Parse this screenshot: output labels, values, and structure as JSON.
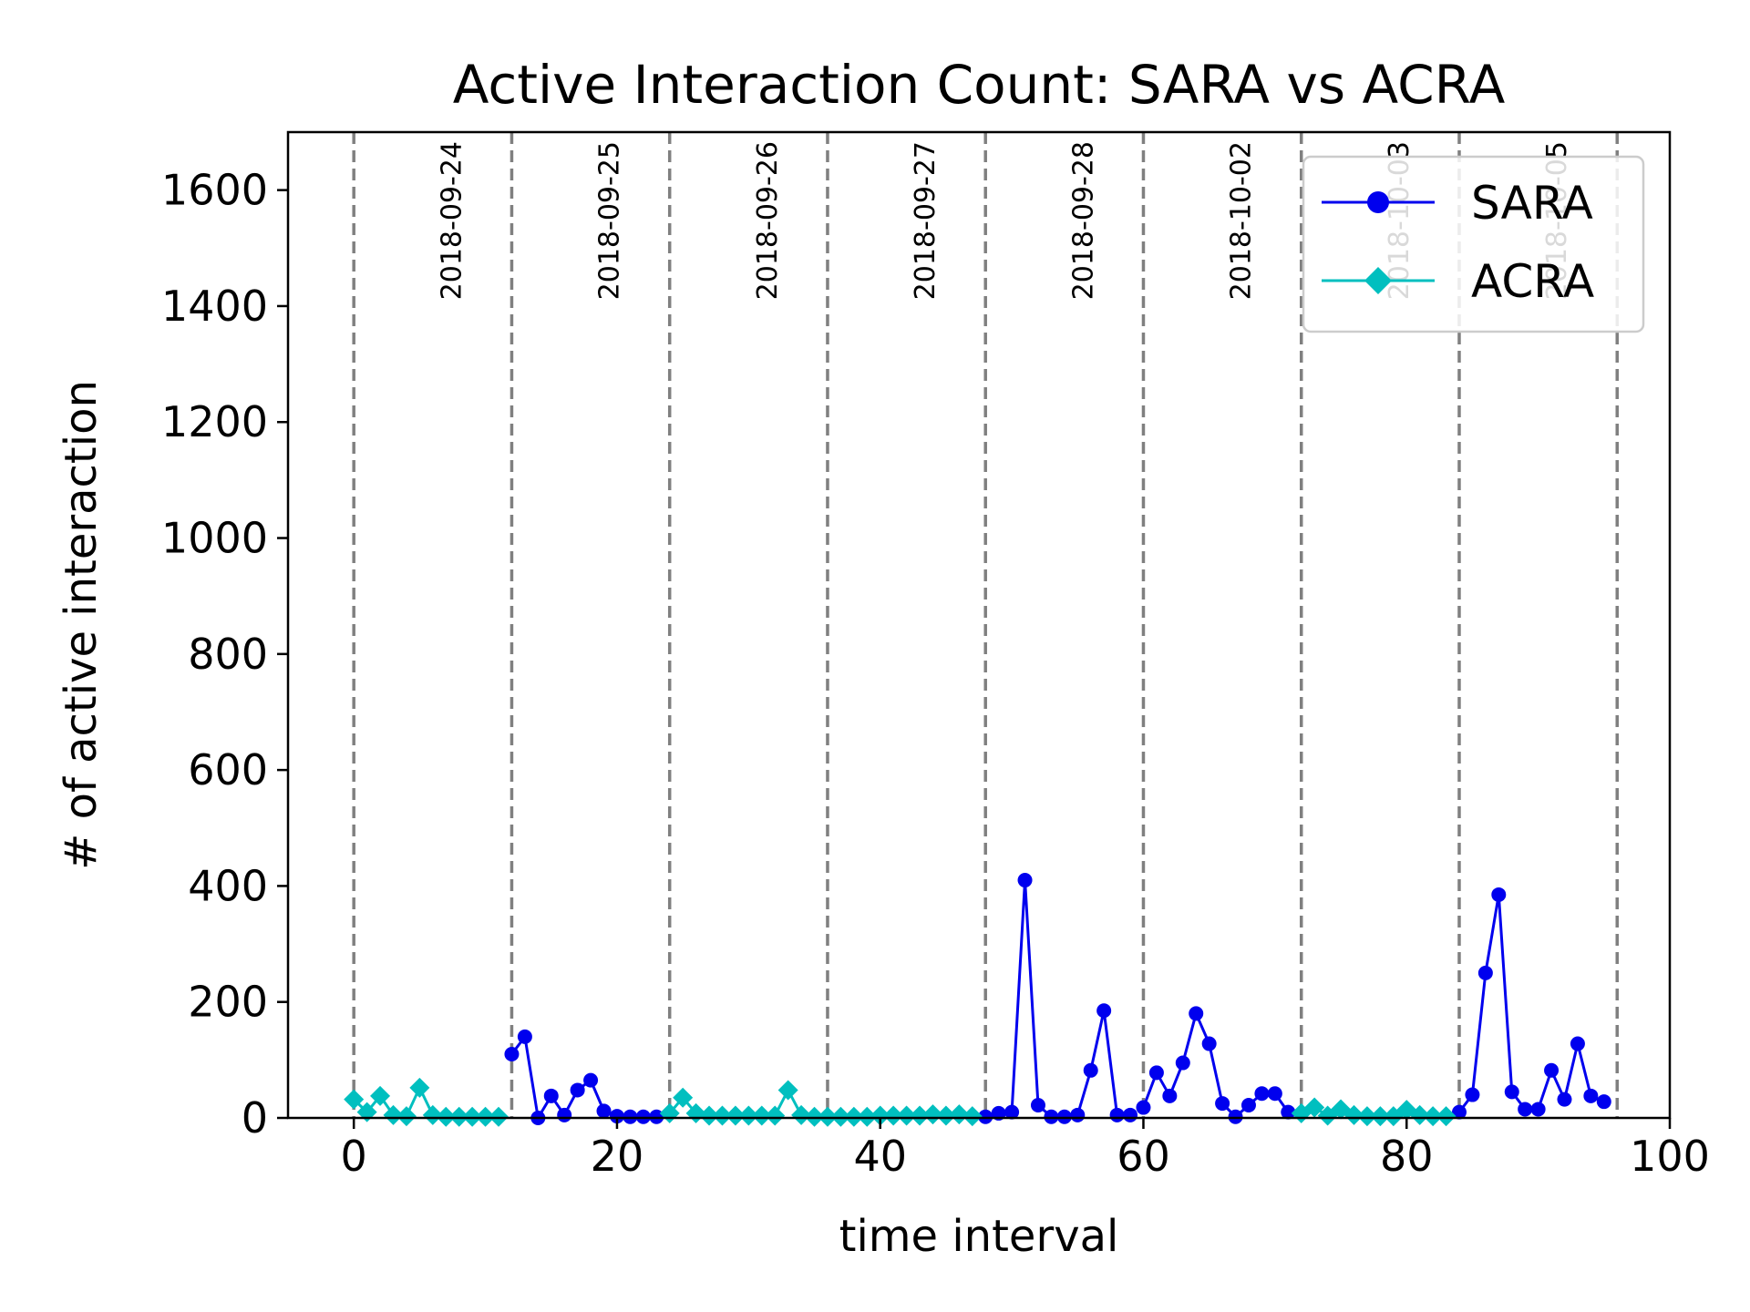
{
  "chart_data": {
    "type": "line",
    "title": "Active Interaction Count: SARA vs ACRA",
    "xlabel": "time interval",
    "ylabel": "# of active interaction",
    "xlim": [
      -5,
      100
    ],
    "ylim": [
      0,
      1700
    ],
    "xticks": [
      0,
      20,
      40,
      60,
      80,
      100
    ],
    "yticks": [
      0,
      200,
      400,
      600,
      800,
      1000,
      1200,
      1400,
      1600
    ],
    "grid": false,
    "legend_position": "top-right",
    "vertical_lines": [
      {
        "x": 0,
        "label": ""
      },
      {
        "x": 12,
        "label": "2018-09-24"
      },
      {
        "x": 24,
        "label": "2018-09-25"
      },
      {
        "x": 36,
        "label": "2018-09-26"
      },
      {
        "x": 48,
        "label": "2018-09-27"
      },
      {
        "x": 60,
        "label": "2018-09-28"
      },
      {
        "x": 72,
        "label": "2018-10-02"
      },
      {
        "x": 84,
        "label": "2018-10-03"
      },
      {
        "x": 96,
        "label": "2018-10-05"
      }
    ],
    "series": [
      {
        "name": "SARA",
        "color": "#0000ee",
        "marker": "circle",
        "segments": [
          {
            "x": [
              12,
              13,
              14,
              15,
              16,
              17,
              18,
              19,
              20,
              21,
              22,
              23
            ],
            "y": [
              110,
              140,
              0,
              38,
              5,
              48,
              65,
              12,
              3,
              2,
              2,
              2
            ]
          },
          {
            "x": [
              48,
              49,
              50,
              51,
              52,
              53,
              54,
              55,
              56,
              57,
              58,
              59
            ],
            "y": [
              2,
              8,
              10,
              410,
              22,
              2,
              2,
              5,
              82,
              185,
              5,
              5
            ]
          },
          {
            "x": [
              60,
              61,
              62,
              63,
              64,
              65,
              66,
              67,
              68,
              69,
              70,
              71
            ],
            "y": [
              18,
              78,
              38,
              95,
              180,
              128,
              25,
              2,
              22,
              42,
              42,
              10
            ]
          },
          {
            "x": [
              84,
              85,
              86,
              87,
              88,
              89,
              90,
              91,
              92,
              93,
              94,
              95
            ],
            "y": [
              10,
              40,
              250,
              385,
              45,
              15,
              15,
              82,
              32,
              128,
              38,
              28
            ]
          }
        ]
      },
      {
        "name": "ACRA",
        "color": "#00bfbf",
        "marker": "diamond",
        "segments": [
          {
            "x": [
              0,
              1,
              2,
              3,
              4,
              5,
              6,
              7,
              8,
              9,
              10,
              11
            ],
            "y": [
              32,
              10,
              38,
              5,
              3,
              52,
              5,
              2,
              2,
              2,
              2,
              2
            ]
          },
          {
            "x": [
              24,
              25,
              26,
              27,
              28,
              29,
              30,
              31,
              32,
              33,
              34,
              35
            ],
            "y": [
              8,
              35,
              8,
              4,
              4,
              4,
              4,
              4,
              4,
              48,
              5,
              2
            ]
          },
          {
            "x": [
              36,
              37,
              38,
              39,
              40,
              41,
              42,
              43,
              44,
              45,
              46,
              47
            ],
            "y": [
              2,
              2,
              2,
              2,
              4,
              4,
              4,
              4,
              6,
              4,
              6,
              3
            ]
          },
          {
            "x": [
              72,
              73,
              74,
              75,
              76,
              77,
              78,
              79,
              80,
              81,
              82,
              83
            ],
            "y": [
              8,
              18,
              4,
              15,
              5,
              3,
              3,
              3,
              14,
              5,
              3,
              3
            ]
          }
        ]
      }
    ]
  }
}
